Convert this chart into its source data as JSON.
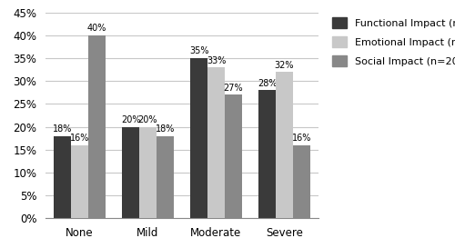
{
  "categories": [
    "None",
    "Mild",
    "Moderate",
    "Severe"
  ],
  "series": {
    "Functional Impact (n=200)": [
      18,
      20,
      35,
      28
    ],
    "Emotional Impact (n=200)": [
      16,
      20,
      33,
      32
    ],
    "Social Impact (n=200)": [
      40,
      18,
      27,
      16
    ]
  },
  "colors": {
    "Functional Impact (n=200)": "#3a3a3a",
    "Emotional Impact (n=200)": "#c8c8c8",
    "Social Impact (n=200)": "#888888"
  },
  "ylim": [
    0,
    45
  ],
  "yticks": [
    0,
    5,
    10,
    15,
    20,
    25,
    30,
    35,
    40,
    45
  ],
  "ytick_labels": [
    "0%",
    "5%",
    "10%",
    "15%",
    "20%",
    "25%",
    "30%",
    "35%",
    "40%",
    "45%"
  ],
  "bar_width": 0.25,
  "label_fontsize": 7.0,
  "tick_fontsize": 8.5,
  "legend_fontsize": 8.0,
  "background_color": "#ffffff",
  "grid_color": "#c8c8c8"
}
